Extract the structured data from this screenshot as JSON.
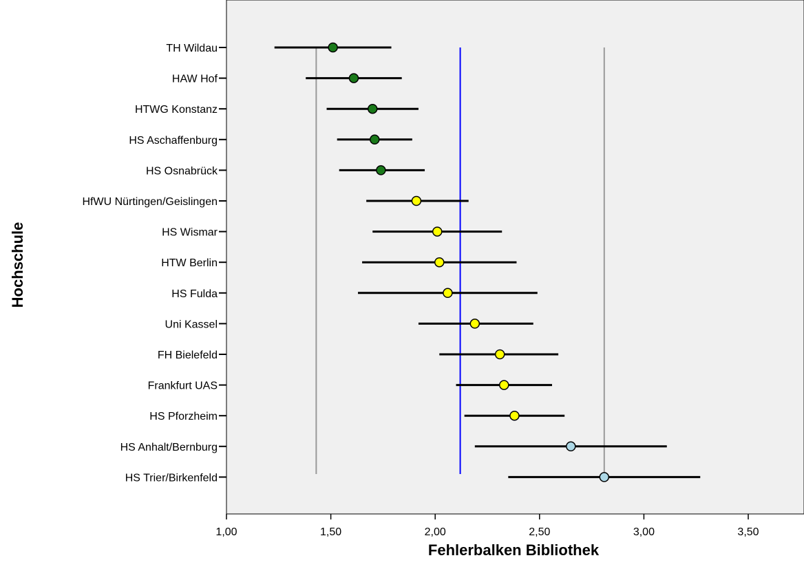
{
  "chart_data": {
    "type": "scatter",
    "xlabel": "Fehlerbalken Bibliothek",
    "ylabel": "Hochschule",
    "xlim": [
      1.0,
      3.75
    ],
    "xticks": [
      "1,00",
      "1,50",
      "2,00",
      "2,50",
      "3,00",
      "3,50"
    ],
    "xtick_values": [
      1.0,
      1.5,
      2.0,
      2.5,
      3.0,
      3.5
    ],
    "grid": false,
    "background_color": "#f0f0f0",
    "reference_lines": [
      {
        "x": 1.43,
        "color": "#999999"
      },
      {
        "x": 2.12,
        "color": "#0000ff"
      },
      {
        "x": 2.81,
        "color": "#999999"
      }
    ],
    "categories": [
      "TH Wildau",
      "HAW Hof",
      "HTWG Konstanz",
      "HS Aschaffenburg",
      "HS Osnabrück",
      "HfWU Nürtingen/Geislingen",
      "HS Wismar",
      "HTW Berlin",
      "HS Fulda",
      "Uni Kassel",
      "FH Bielefeld",
      "Frankfurt UAS",
      "HS Pforzheim",
      "HS Anhalt/Bernburg",
      "HS Trier/Birkenfeld"
    ],
    "means": [
      1.51,
      1.61,
      1.7,
      1.71,
      1.74,
      1.91,
      2.01,
      2.02,
      2.06,
      2.19,
      2.31,
      2.33,
      2.38,
      2.65,
      2.81
    ],
    "lower": [
      1.23,
      1.38,
      1.48,
      1.53,
      1.54,
      1.67,
      1.7,
      1.65,
      1.63,
      1.92,
      2.02,
      2.1,
      2.14,
      2.19,
      2.35
    ],
    "upper": [
      1.79,
      1.84,
      1.92,
      1.89,
      1.95,
      2.16,
      2.32,
      2.39,
      2.49,
      2.47,
      2.59,
      2.56,
      2.62,
      3.11,
      3.27
    ],
    "marker_colors": [
      "#1a7a1a",
      "#1a7a1a",
      "#1a7a1a",
      "#1a7a1a",
      "#1a7a1a",
      "#ffff00",
      "#ffff00",
      "#ffff00",
      "#ffff00",
      "#ffff00",
      "#ffff00",
      "#ffff00",
      "#ffff00",
      "#add8e6",
      "#add8e6"
    ]
  }
}
